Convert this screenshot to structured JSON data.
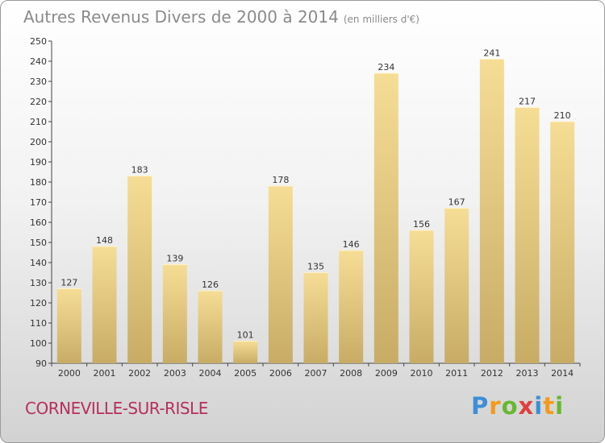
{
  "title": "Autres Revenus Divers de 2000 à 2014",
  "subtitle": "(en milliers d'€)",
  "commune": "CORNEVILLE-SUR-RISLE",
  "logo": {
    "text": "Proxiti",
    "letter_colors": [
      "#3d8fd6",
      "#f39a1b",
      "#67b82e",
      "#e23d3d",
      "#3d8fd6",
      "#f39a1b",
      "#67b82e"
    ]
  },
  "colors": {
    "bar_light": "#f6dd95",
    "bar_dark": "#c8ac66",
    "title": "#8a8a8a",
    "commune": "#b5305c"
  },
  "chart_data": {
    "type": "bar",
    "title": "Autres Revenus Divers de 2000 à 2014",
    "subtitle": "(en milliers d'€)",
    "categories": [
      "2000",
      "2001",
      "2002",
      "2003",
      "2004",
      "2005",
      "2006",
      "2007",
      "2008",
      "2009",
      "2010",
      "2011",
      "2012",
      "2013",
      "2014"
    ],
    "values": [
      127,
      148,
      183,
      139,
      126,
      101,
      178,
      135,
      146,
      234,
      156,
      167,
      241,
      217,
      210
    ],
    "ylim": [
      90,
      250
    ],
    "yticks": [
      90,
      100,
      110,
      120,
      130,
      140,
      150,
      160,
      170,
      180,
      190,
      200,
      210,
      220,
      230,
      240,
      250
    ],
    "grid": false,
    "data_labels": true
  }
}
